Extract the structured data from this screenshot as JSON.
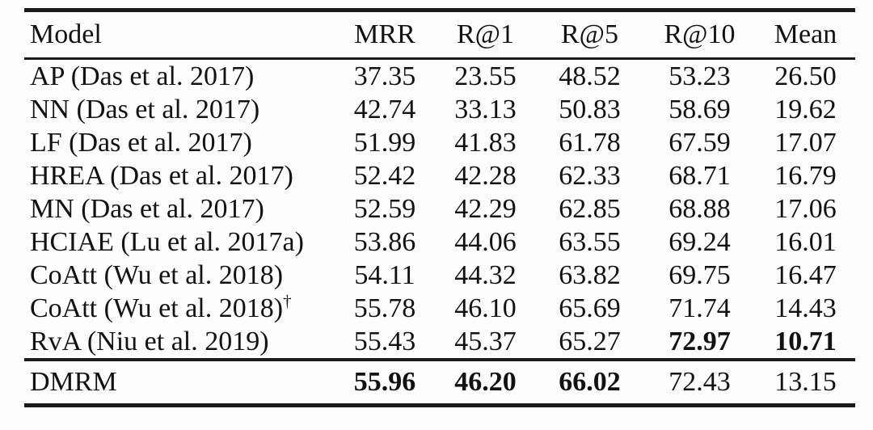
{
  "page": {
    "background_color": "#fdfdfd",
    "text_color": "#121212",
    "rule_color": "#1b1b1b"
  },
  "table": {
    "headers": [
      "Model",
      "MRR",
      "R@1",
      "R@5",
      "R@10",
      "Mean"
    ],
    "rows": [
      {
        "model": "AP (Das et al. 2017)",
        "sup": "",
        "mrr": "37.35",
        "r1": "23.55",
        "r5": "48.52",
        "r10": "53.23",
        "mean": "26.50",
        "bold_columns": []
      },
      {
        "model": "NN (Das et al. 2017)",
        "sup": "",
        "mrr": "42.74",
        "r1": "33.13",
        "r5": "50.83",
        "r10": "58.69",
        "mean": "19.62",
        "bold_columns": []
      },
      {
        "model": "LF (Das et al. 2017)",
        "sup": "",
        "mrr": "51.99",
        "r1": "41.83",
        "r5": "61.78",
        "r10": "67.59",
        "mean": "17.07",
        "bold_columns": []
      },
      {
        "model": "HREA (Das et al. 2017)",
        "sup": "",
        "mrr": "52.42",
        "r1": "42.28",
        "r5": "62.33",
        "r10": "68.71",
        "mean": "16.79",
        "bold_columns": []
      },
      {
        "model": "MN (Das et al. 2017)",
        "sup": "",
        "mrr": "52.59",
        "r1": "42.29",
        "r5": "62.85",
        "r10": "68.88",
        "mean": "17.06",
        "bold_columns": []
      },
      {
        "model": "HCIAE (Lu et al. 2017a)",
        "sup": "",
        "mrr": "53.86",
        "r1": "44.06",
        "r5": "63.55",
        "r10": "69.24",
        "mean": "16.01",
        "bold_columns": []
      },
      {
        "model": "CoAtt (Wu et al. 2018)",
        "sup": "",
        "mrr": "54.11",
        "r1": "44.32",
        "r5": "63.82",
        "r10": "69.75",
        "mean": "16.47",
        "bold_columns": []
      },
      {
        "model": "CoAtt (Wu et al. 2018)",
        "sup": "†",
        "mrr": "55.78",
        "r1": "46.10",
        "r5": "65.69",
        "r10": "71.74",
        "mean": "14.43",
        "bold_columns": []
      },
      {
        "model": "RvA (Niu et al. 2019)",
        "sup": "",
        "mrr": "55.43",
        "r1": "45.37",
        "r5": "65.27",
        "r10": "72.97",
        "mean": "10.71",
        "bold_columns": [
          "r10",
          "mean"
        ]
      }
    ],
    "summary_row": {
      "model": "DMRM",
      "sup": "",
      "mrr": "55.96",
      "r1": "46.20",
      "r5": "66.02",
      "r10": "72.43",
      "mean": "13.15",
      "bold_columns": [
        "mrr",
        "r1",
        "r5"
      ]
    }
  }
}
